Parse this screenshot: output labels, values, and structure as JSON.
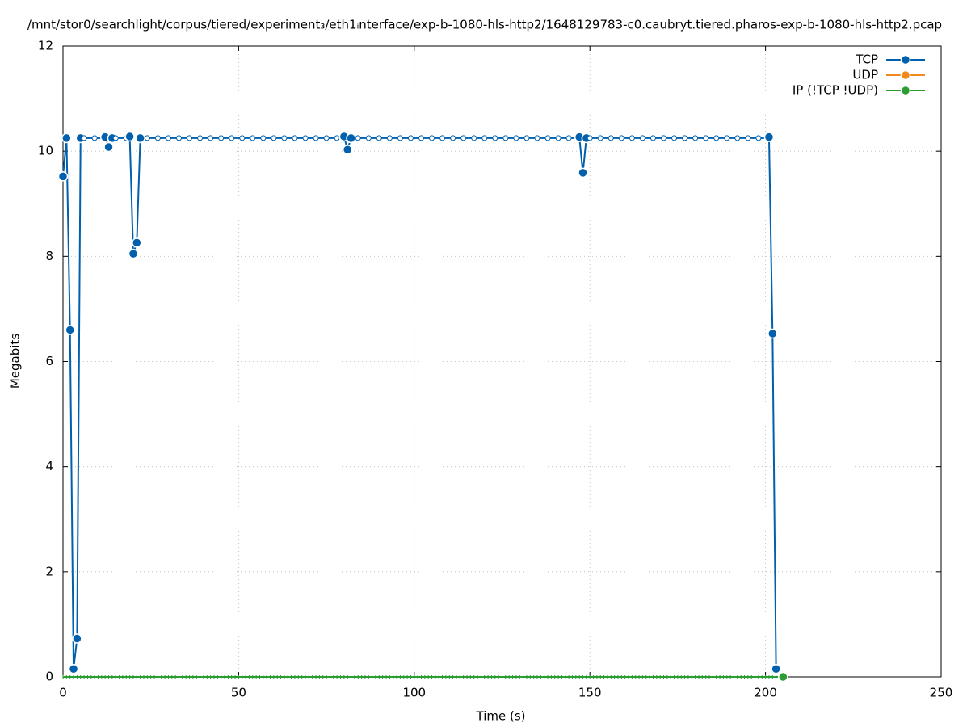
{
  "chart_data": {
    "type": "line",
    "title": "/mnt/stor0/searchlight/corpus/tiered/experiment₃/eth1ᵢnterface/exp-b-1080-hls-http2/1648129783-c0.caubryt.tiered.pharos-exp-b-1080-hls-http2.pcap",
    "xlabel": "Time (s)",
    "ylabel": "Megabits",
    "xlim": [
      0,
      250
    ],
    "xticks": [
      0,
      50,
      100,
      150,
      200,
      250
    ],
    "ylim": [
      0,
      12
    ],
    "yticks": [
      0,
      2,
      4,
      6,
      8,
      10,
      12
    ],
    "grid": true,
    "legend": "top-right",
    "x": [
      0,
      1,
      2,
      3,
      4,
      5,
      6,
      7,
      8,
      9,
      10,
      11,
      12,
      13,
      14,
      15,
      16,
      17,
      18,
      19,
      20,
      21,
      22,
      23,
      24,
      25,
      26,
      27,
      28,
      29,
      30,
      31,
      32,
      33,
      34,
      35,
      36,
      37,
      38,
      39,
      40,
      41,
      42,
      43,
      44,
      45,
      46,
      47,
      48,
      49,
      50,
      51,
      52,
      53,
      54,
      55,
      56,
      57,
      58,
      59,
      60,
      61,
      62,
      63,
      64,
      65,
      66,
      67,
      68,
      69,
      70,
      71,
      72,
      73,
      74,
      75,
      76,
      77,
      78,
      79,
      80,
      81,
      82,
      83,
      84,
      85,
      86,
      87,
      88,
      89,
      90,
      91,
      92,
      93,
      94,
      95,
      96,
      97,
      98,
      99,
      100,
      101,
      102,
      103,
      104,
      105,
      106,
      107,
      108,
      109,
      110,
      111,
      112,
      113,
      114,
      115,
      116,
      117,
      118,
      119,
      120,
      121,
      122,
      123,
      124,
      125,
      126,
      127,
      128,
      129,
      130,
      131,
      132,
      133,
      134,
      135,
      136,
      137,
      138,
      139,
      140,
      141,
      142,
      143,
      144,
      145,
      146,
      147,
      148,
      149,
      150,
      151,
      152,
      153,
      154,
      155,
      156,
      157,
      158,
      159,
      160,
      161,
      162,
      163,
      164,
      165,
      166,
      167,
      168,
      169,
      170,
      171,
      172,
      173,
      174,
      175,
      176,
      177,
      178,
      179,
      180,
      181,
      182,
      183,
      184,
      185,
      186,
      187,
      188,
      189,
      190,
      191,
      192,
      193,
      194,
      195,
      196,
      197,
      198,
      199,
      200,
      201,
      202,
      203,
      204,
      205
    ],
    "series": [
      {
        "name": "TCP",
        "color": "#0060ad",
        "values": [
          9.52,
          10.25,
          6.6,
          0.15,
          0.73,
          10.25,
          10.25,
          10.25,
          10.25,
          10.25,
          10.25,
          10.25,
          10.27,
          10.08,
          10.25,
          10.25,
          10.25,
          10.25,
          10.25,
          10.28,
          8.05,
          8.26,
          10.25,
          10.25,
          10.25,
          10.25,
          10.25,
          10.25,
          10.25,
          10.25,
          10.25,
          10.25,
          10.25,
          10.25,
          10.25,
          10.25,
          10.25,
          10.25,
          10.25,
          10.25,
          10.25,
          10.25,
          10.25,
          10.25,
          10.25,
          10.25,
          10.25,
          10.25,
          10.25,
          10.25,
          10.25,
          10.25,
          10.25,
          10.25,
          10.25,
          10.25,
          10.25,
          10.25,
          10.25,
          10.25,
          10.25,
          10.25,
          10.25,
          10.25,
          10.25,
          10.25,
          10.25,
          10.25,
          10.25,
          10.25,
          10.25,
          10.25,
          10.25,
          10.25,
          10.25,
          10.25,
          10.25,
          10.25,
          10.25,
          10.25,
          10.28,
          10.03,
          10.25,
          10.25,
          10.25,
          10.25,
          10.25,
          10.25,
          10.25,
          10.25,
          10.25,
          10.25,
          10.25,
          10.25,
          10.25,
          10.25,
          10.25,
          10.25,
          10.25,
          10.25,
          10.25,
          10.25,
          10.25,
          10.25,
          10.25,
          10.25,
          10.25,
          10.25,
          10.25,
          10.25,
          10.25,
          10.25,
          10.25,
          10.25,
          10.25,
          10.25,
          10.25,
          10.25,
          10.25,
          10.25,
          10.25,
          10.25,
          10.25,
          10.25,
          10.25,
          10.25,
          10.25,
          10.25,
          10.25,
          10.25,
          10.25,
          10.25,
          10.25,
          10.25,
          10.25,
          10.25,
          10.25,
          10.25,
          10.25,
          10.25,
          10.25,
          10.25,
          10.25,
          10.25,
          10.25,
          10.25,
          10.25,
          10.27,
          9.59,
          10.25,
          10.25,
          10.25,
          10.25,
          10.25,
          10.25,
          10.25,
          10.25,
          10.25,
          10.25,
          10.25,
          10.25,
          10.25,
          10.25,
          10.25,
          10.25,
          10.25,
          10.25,
          10.25,
          10.25,
          10.25,
          10.25,
          10.25,
          10.25,
          10.25,
          10.25,
          10.25,
          10.25,
          10.25,
          10.25,
          10.25,
          10.25,
          10.25,
          10.25,
          10.25,
          10.25,
          10.25,
          10.25,
          10.25,
          10.25,
          10.25,
          10.25,
          10.25,
          10.25,
          10.25,
          10.25,
          10.25,
          10.25,
          10.25,
          10.25,
          10.25,
          10.25,
          10.27,
          6.53,
          0.15,
          null,
          null
        ]
      },
      {
        "name": "UDP",
        "color": "#f08a1c",
        "values": [
          0,
          0,
          0,
          0,
          0,
          0,
          0,
          0,
          0,
          0,
          0,
          0,
          0,
          0,
          0,
          0,
          0,
          0,
          0,
          0,
          0,
          0,
          0,
          0,
          0,
          0,
          0,
          0,
          0,
          0,
          0,
          0,
          0,
          0,
          0,
          0,
          0,
          0,
          0,
          0,
          0,
          0,
          0,
          0,
          0,
          0,
          0,
          0,
          0,
          0,
          0,
          0,
          0,
          0,
          0,
          0,
          0,
          0,
          0,
          0,
          0,
          0,
          0,
          0,
          0,
          0,
          0,
          0,
          0,
          0,
          0,
          0,
          0,
          0,
          0,
          0,
          0,
          0,
          0,
          0,
          0,
          0,
          0,
          0,
          0,
          0,
          0,
          0,
          0,
          0,
          0,
          0,
          0,
          0,
          0,
          0,
          0,
          0,
          0,
          0,
          0,
          0,
          0,
          0,
          0,
          0,
          0,
          0,
          0,
          0,
          0,
          0,
          0,
          0,
          0,
          0,
          0,
          0,
          0,
          0,
          0,
          0,
          0,
          0,
          0,
          0,
          0,
          0,
          0,
          0,
          0,
          0,
          0,
          0,
          0,
          0,
          0,
          0,
          0,
          0,
          0,
          0,
          0,
          0,
          0,
          0,
          0,
          0,
          0,
          0,
          0,
          0,
          0,
          0,
          0,
          0,
          0,
          0,
          0,
          0,
          0,
          0,
          0,
          0,
          0,
          0,
          0,
          0,
          0,
          0,
          0,
          0,
          0,
          0,
          0,
          0,
          0,
          0,
          0,
          0,
          0,
          0,
          0,
          0,
          0,
          0,
          0,
          0,
          0,
          0,
          0,
          0,
          0,
          0,
          0,
          0,
          0,
          0,
          0,
          0,
          0,
          0,
          0,
          0,
          0,
          0
        ]
      },
      {
        "name": "IP (!TCP  !UDP)",
        "color": "#2a9d33",
        "values": [
          0,
          0,
          0,
          0,
          0,
          0,
          0,
          0,
          0,
          0,
          0,
          0,
          0,
          0,
          0,
          0,
          0,
          0,
          0,
          0,
          0,
          0,
          0,
          0,
          0,
          0,
          0,
          0,
          0,
          0,
          0,
          0,
          0,
          0,
          0,
          0,
          0,
          0,
          0,
          0,
          0,
          0,
          0,
          0,
          0,
          0,
          0,
          0,
          0,
          0,
          0,
          0,
          0,
          0,
          0,
          0,
          0,
          0,
          0,
          0,
          0,
          0,
          0,
          0,
          0,
          0,
          0,
          0,
          0,
          0,
          0,
          0,
          0,
          0,
          0,
          0,
          0,
          0,
          0,
          0,
          0,
          0,
          0,
          0,
          0,
          0,
          0,
          0,
          0,
          0,
          0,
          0,
          0,
          0,
          0,
          0,
          0,
          0,
          0,
          0,
          0,
          0,
          0,
          0,
          0,
          0,
          0,
          0,
          0,
          0,
          0,
          0,
          0,
          0,
          0,
          0,
          0,
          0,
          0,
          0,
          0,
          0,
          0,
          0,
          0,
          0,
          0,
          0,
          0,
          0,
          0,
          0,
          0,
          0,
          0,
          0,
          0,
          0,
          0,
          0,
          0,
          0,
          0,
          0,
          0,
          0,
          0,
          0,
          0,
          0,
          0,
          0,
          0,
          0,
          0,
          0,
          0,
          0,
          0,
          0,
          0,
          0,
          0,
          0,
          0,
          0,
          0,
          0,
          0,
          0,
          0,
          0,
          0,
          0,
          0,
          0,
          0,
          0,
          0,
          0,
          0,
          0,
          0,
          0,
          0,
          0,
          0,
          0,
          0,
          0,
          0,
          0,
          0,
          0,
          0,
          0,
          0,
          0,
          0,
          0,
          0,
          0,
          0,
          0,
          0,
          0
        ]
      }
    ]
  }
}
